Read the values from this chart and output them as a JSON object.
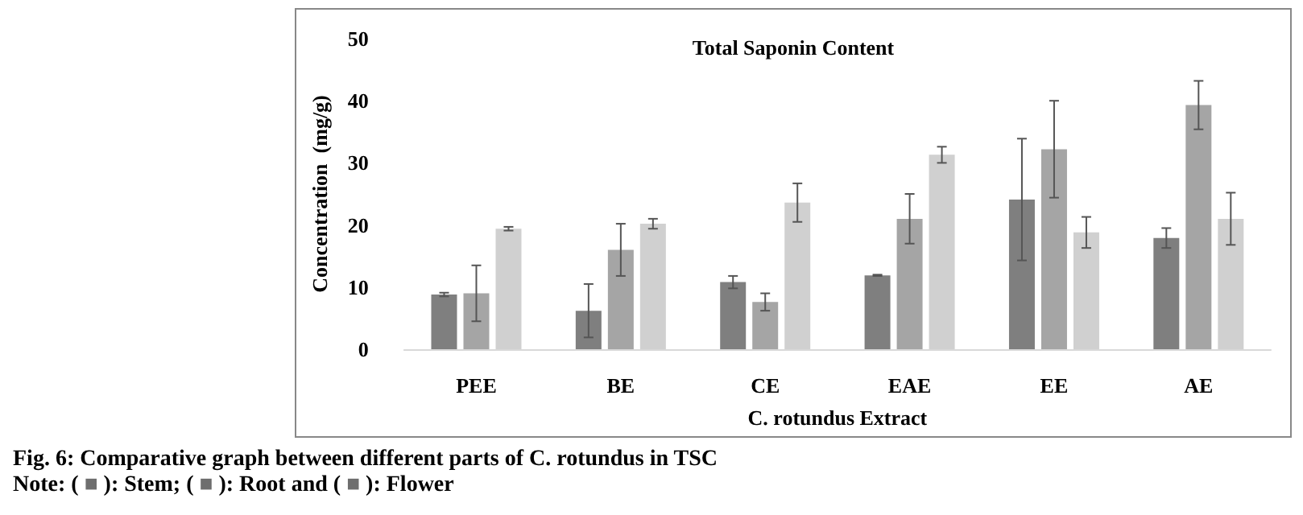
{
  "chart_data": {
    "type": "bar",
    "title": "Total Saponin Content",
    "xlabel": "C. rotundus Extract",
    "ylabel": "Concentration  (mg/g)",
    "grid": false,
    "categories": [
      "PEE",
      "BE",
      "CE",
      "EAE",
      "EE",
      "AE"
    ],
    "series": [
      {
        "color": "#7f7f7f",
        "values": [
          8.8,
          6.2,
          10.8,
          11.9,
          24.1,
          17.9
        ],
        "errors": [
          0.3,
          4.3,
          1.0,
          0.1,
          9.8,
          1.6
        ]
      },
      {
        "color": "#a5a5a5",
        "values": [
          9.0,
          16.0,
          7.6,
          21.0,
          32.2,
          39.3
        ],
        "errors": [
          4.5,
          4.2,
          1.4,
          4.0,
          7.8,
          3.9
        ]
      },
      {
        "color": "#d0d0d0",
        "values": [
          19.4,
          20.2,
          23.6,
          31.3,
          18.8,
          21.0
        ],
        "errors": [
          0.3,
          0.8,
          3.1,
          1.3,
          2.5,
          4.2
        ]
      }
    ],
    "ylim": [
      0,
      50
    ],
    "yticks": [
      0,
      10,
      20,
      30,
      40,
      50
    ],
    "annotations": [
      "Fig. 6: Comparative graph between different parts of C. rotundus in TSC",
      "Note: ( ■ ): Stem; ( ■ ): Root and ( ■ ): Flower"
    ]
  }
}
